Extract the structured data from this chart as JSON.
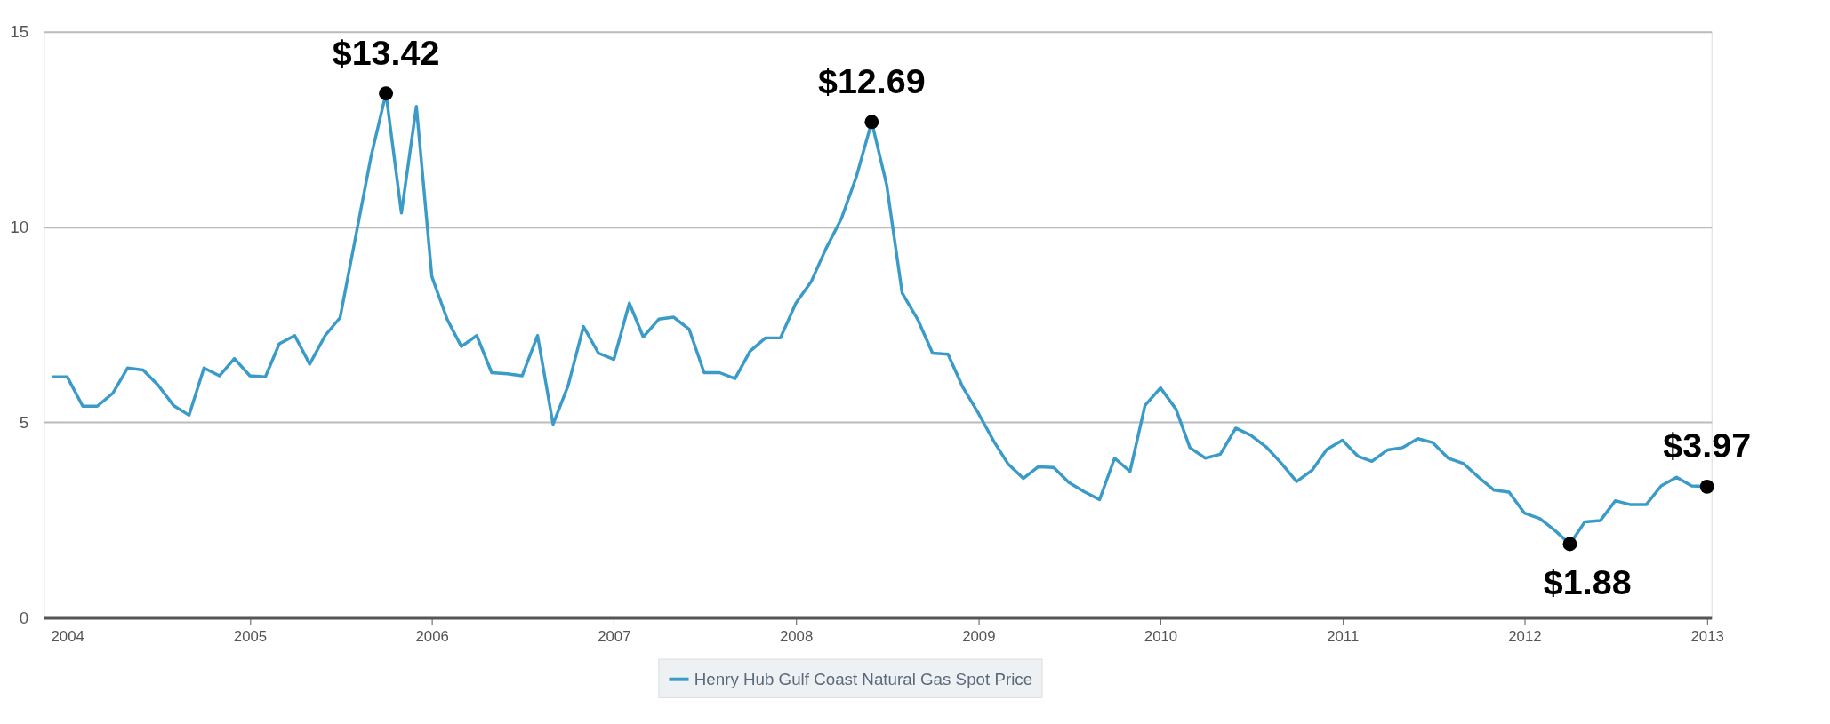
{
  "chart_data": {
    "type": "line",
    "x": [
      "2003-12",
      "2004-01",
      "2004-02",
      "2004-03",
      "2004-04",
      "2004-05",
      "2004-06",
      "2004-07",
      "2004-08",
      "2004-09",
      "2004-10",
      "2004-11",
      "2004-12",
      "2005-01",
      "2005-02",
      "2005-03",
      "2005-04",
      "2005-05",
      "2005-06",
      "2005-07",
      "2005-08",
      "2005-09",
      "2005-10",
      "2005-11",
      "2005-12",
      "2006-01",
      "2006-02",
      "2006-03",
      "2006-04",
      "2006-05",
      "2006-06",
      "2006-07",
      "2006-08",
      "2006-09",
      "2006-10",
      "2006-11",
      "2006-12",
      "2007-01",
      "2007-02",
      "2007-03",
      "2007-04",
      "2007-05",
      "2007-06",
      "2007-07",
      "2007-08",
      "2007-09",
      "2007-10",
      "2007-11",
      "2007-12",
      "2008-01",
      "2008-02",
      "2008-03",
      "2008-04",
      "2008-05",
      "2008-06",
      "2008-07",
      "2008-08",
      "2008-09",
      "2008-10",
      "2008-11",
      "2008-12",
      "2009-01",
      "2009-02",
      "2009-03",
      "2009-04",
      "2009-05",
      "2009-06",
      "2009-07",
      "2009-08",
      "2009-09",
      "2009-10",
      "2009-11",
      "2009-12",
      "2010-01",
      "2010-02",
      "2010-03",
      "2010-04",
      "2010-05",
      "2010-06",
      "2010-07",
      "2010-08",
      "2010-09",
      "2010-10",
      "2010-11",
      "2010-12",
      "2011-01",
      "2011-02",
      "2011-03",
      "2011-04",
      "2011-05",
      "2011-06",
      "2011-07",
      "2011-08",
      "2011-09",
      "2011-10",
      "2011-11",
      "2011-12",
      "2012-01",
      "2012-02",
      "2012-03",
      "2012-04",
      "2012-05",
      "2012-06",
      "2012-07",
      "2012-08",
      "2012-09",
      "2012-10",
      "2012-11",
      "2012-12",
      "2013-01"
    ],
    "series": [
      {
        "name": "Henry Hub Gulf Coast Natural Gas Spot Price",
        "color": "#3a9bc8",
        "values": [
          6.16,
          6.16,
          5.41,
          5.41,
          5.74,
          6.39,
          6.34,
          5.95,
          5.43,
          5.18,
          6.39,
          6.19,
          6.63,
          6.19,
          6.16,
          7.01,
          7.22,
          6.49,
          7.22,
          7.68,
          9.74,
          11.8,
          13.42,
          10.36,
          13.09,
          8.73,
          7.63,
          6.94,
          7.22,
          6.27,
          6.24,
          6.19,
          7.22,
          4.95,
          5.93,
          7.45,
          6.77,
          6.61,
          8.05,
          7.18,
          7.64,
          7.69,
          7.38,
          6.27,
          6.27,
          6.12,
          6.82,
          7.16,
          7.16,
          8.05,
          8.61,
          9.44,
          10.21,
          11.28,
          12.69,
          11.08,
          8.31,
          7.64,
          6.77,
          6.74,
          5.89,
          5.23,
          4.51,
          3.94,
          3.56,
          3.86,
          3.84,
          3.46,
          3.22,
          3.02,
          4.08,
          3.74,
          5.43,
          5.88,
          5.34,
          4.35,
          4.08,
          4.18,
          4.85,
          4.67,
          4.37,
          3.94,
          3.48,
          3.77,
          4.31,
          4.54,
          4.13,
          4.0,
          4.29,
          4.35,
          4.58,
          4.48,
          4.08,
          3.94,
          3.59,
          3.26,
          3.21,
          2.67,
          2.53,
          2.24,
          1.88,
          2.45,
          2.48,
          2.99,
          2.89,
          2.89,
          3.37,
          3.59,
          3.37,
          3.35
        ]
      },
      {
        "type": "scatter",
        "color": "#000000",
        "x": [
          "2005-10",
          "2008-06",
          "2012-04",
          "2013-01"
        ],
        "values": [
          13.42,
          12.69,
          1.88,
          3.35
        ]
      }
    ],
    "xlim": [
      "2003-11-15",
      "2013-01-10"
    ],
    "xticks": [
      "2004",
      "2005",
      "2006",
      "2007",
      "2008",
      "2009",
      "2010",
      "2011",
      "2012",
      "2013"
    ],
    "ylim": [
      0,
      15
    ],
    "yticks": [
      0,
      5,
      10,
      15
    ],
    "grid": "y",
    "legend": "bottom",
    "annotations": [
      {
        "text": "$13.42",
        "x": "2005-10",
        "y": 13.42
      },
      {
        "text": "$12.69",
        "x": "2008-06",
        "y": 12.69
      },
      {
        "text": "$1.88",
        "x": "2012-04",
        "y": 1.88
      },
      {
        "text": "$3.97",
        "x": "2013-01",
        "y": 3.35
      }
    ]
  }
}
